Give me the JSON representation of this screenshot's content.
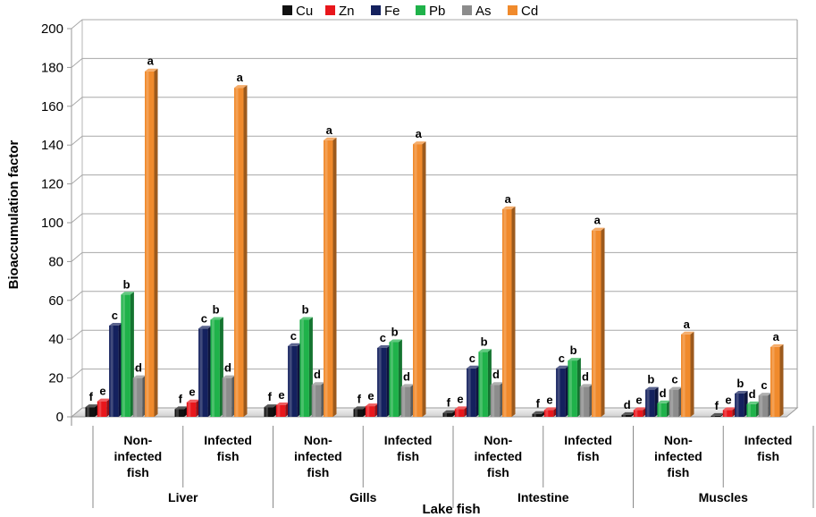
{
  "chart_data": {
    "type": "bar",
    "title": "",
    "xlabel": "Lake fish",
    "ylabel": "Bioaccumulation factor",
    "ylim": [
      0,
      200
    ],
    "yticks": [
      0,
      20,
      40,
      60,
      80,
      100,
      120,
      140,
      160,
      180,
      200
    ],
    "groups": [
      "Liver",
      "Gills",
      "Intestine",
      "Muscles"
    ],
    "categories": [
      {
        "group": "Liver",
        "lines": [
          "Non-",
          "infected",
          "fish"
        ]
      },
      {
        "group": "Liver",
        "lines": [
          "Infected",
          "fish"
        ]
      },
      {
        "group": "Gills",
        "lines": [
          "Non-",
          "infected",
          "fish"
        ]
      },
      {
        "group": "Gills",
        "lines": [
          "Infected",
          "fish"
        ]
      },
      {
        "group": "Intestine",
        "lines": [
          "Non-",
          "infected",
          "fish"
        ]
      },
      {
        "group": "Intestine",
        "lines": [
          "Infected",
          "fish"
        ]
      },
      {
        "group": "Muscles",
        "lines": [
          "Non-",
          "infected",
          "fish"
        ]
      },
      {
        "group": "Muscles",
        "lines": [
          "Infected",
          "fish"
        ]
      }
    ],
    "series": [
      {
        "name": "Cu",
        "color": "#111111",
        "values": [
          5,
          4,
          5,
          4,
          2,
          1.5,
          1,
          0.5
        ],
        "labels": [
          "f",
          "f",
          "f",
          "f",
          "f",
          "f",
          "d",
          "f"
        ]
      },
      {
        "name": "Zn",
        "color": "#e8161b",
        "values": [
          8,
          7.5,
          6,
          5.5,
          4,
          3.5,
          3.5,
          3.5
        ],
        "labels": [
          "e",
          "e",
          "e",
          "e",
          "e",
          "e",
          "e",
          "e"
        ]
      },
      {
        "name": "Fe",
        "color": "#14215e",
        "values": [
          47,
          45.5,
          36.5,
          35.5,
          25,
          25,
          14,
          12
        ],
        "labels": [
          "c",
          "c",
          "c",
          "c",
          "c",
          "c",
          "b",
          "b"
        ]
      },
      {
        "name": "Pb",
        "color": "#1fb24a",
        "values": [
          63,
          50,
          50,
          38.5,
          33.5,
          29,
          7,
          6.5
        ],
        "labels": [
          "b",
          "b",
          "b",
          "b",
          "b",
          "b",
          "d",
          "d"
        ]
      },
      {
        "name": "As",
        "color": "#8c8c8c",
        "values": [
          20,
          20,
          16.5,
          15.5,
          16.5,
          15.5,
          14,
          11
        ],
        "labels": [
          "d",
          "d",
          "d",
          "d",
          "d",
          "d",
          "c",
          "c"
        ]
      },
      {
        "name": "Cd",
        "color": "#f08a2c",
        "values": [
          178,
          169.5,
          142.5,
          140.5,
          107,
          96,
          42.5,
          36
        ],
        "labels": [
          "a",
          "a",
          "a",
          "a",
          "a",
          "a",
          "a",
          "a"
        ]
      }
    ]
  }
}
